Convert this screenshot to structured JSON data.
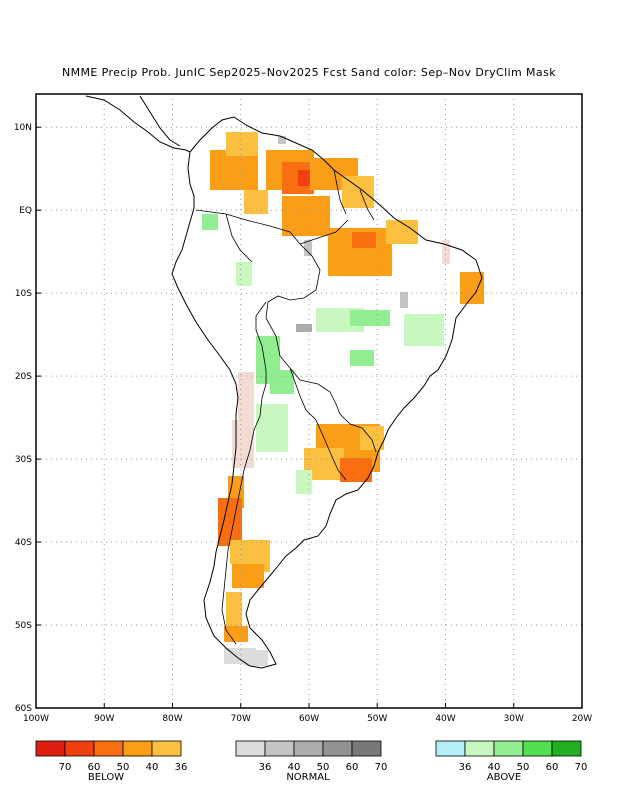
{
  "title": "NMME Precip Prob. JunIC  Sep2025–Nov2025 Fcst  Sand color: Sep–Nov DryClim Mask",
  "map": {
    "region": "South America",
    "lon_range": [
      -100,
      -20
    ],
    "lat_range": [
      -60,
      14
    ],
    "lat_labels": [
      "10N",
      "EQ",
      "10S",
      "20S",
      "30S",
      "40S",
      "50S",
      "60S"
    ],
    "lon_labels": [
      "100W",
      "90W",
      "80W",
      "70W",
      "60W",
      "50W",
      "40W",
      "30W",
      "20W"
    ],
    "gridlines": "dotted every 10 degrees",
    "drymask_color": "#f0dcd2"
  },
  "legend": {
    "below": {
      "name": "BELOW",
      "colors": [
        "#e01e10",
        "#f04010",
        "#f86e10",
        "#fa9e18",
        "#fcc040"
      ],
      "ticks": [
        "70",
        "60",
        "50",
        "40",
        "36"
      ]
    },
    "normal": {
      "name": "NORMAL",
      "colors": [
        "#dcdcdc",
        "#c4c4c4",
        "#acacac",
        "#929292",
        "#787878"
      ],
      "ticks": [
        "36",
        "40",
        "50",
        "60",
        "70"
      ]
    },
    "above": {
      "name": "ABOVE",
      "colors": [
        "#b4eef8",
        "#c8f8c0",
        "#90ee90",
        "#50e050",
        "#20b020"
      ],
      "ticks": [
        "36",
        "40",
        "50",
        "60",
        "70"
      ]
    }
  }
}
